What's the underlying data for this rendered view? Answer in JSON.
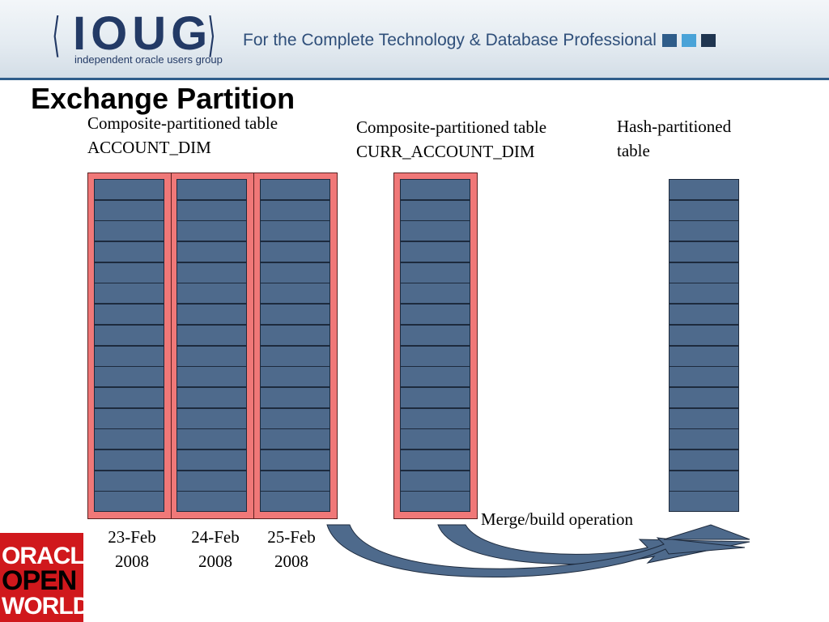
{
  "header": {
    "logo_text": "IOUG",
    "logo_subtitle": "independent oracle users group",
    "tagline": "For the Complete Technology & Database Professional",
    "square_colors": [
      "#2f5d8a",
      "#4aa3d8",
      "#1f3550"
    ]
  },
  "slide": {
    "title": "Exchange Partition"
  },
  "tables": {
    "account_dim": {
      "line1": "Composite-partitioned table",
      "line2": "ACCOUNT_DIM",
      "partitions": [
        {
          "date_line1": "23-Feb",
          "date_line2": "2008"
        },
        {
          "date_line1": "24-Feb",
          "date_line2": "2008"
        },
        {
          "date_line1": "25-Feb",
          "date_line2": "2008"
        }
      ]
    },
    "curr_account_dim": {
      "line1": "Composite-partitioned table",
      "line2": "CURR_ACCOUNT_DIM"
    },
    "hash_table": {
      "line1": "Hash-partitioned",
      "line2": "table"
    }
  },
  "operation": {
    "label": "Merge/build operation"
  },
  "footer_logo": {
    "line1": "ORACLE",
    "line2": "OPEN",
    "line3": "WORLD"
  },
  "colors": {
    "partition_fill": "#f07878",
    "subpartition_fill": "#4e6a8c",
    "arrow_fill": "#4e6a8c",
    "brand_red": "#d0181c"
  }
}
